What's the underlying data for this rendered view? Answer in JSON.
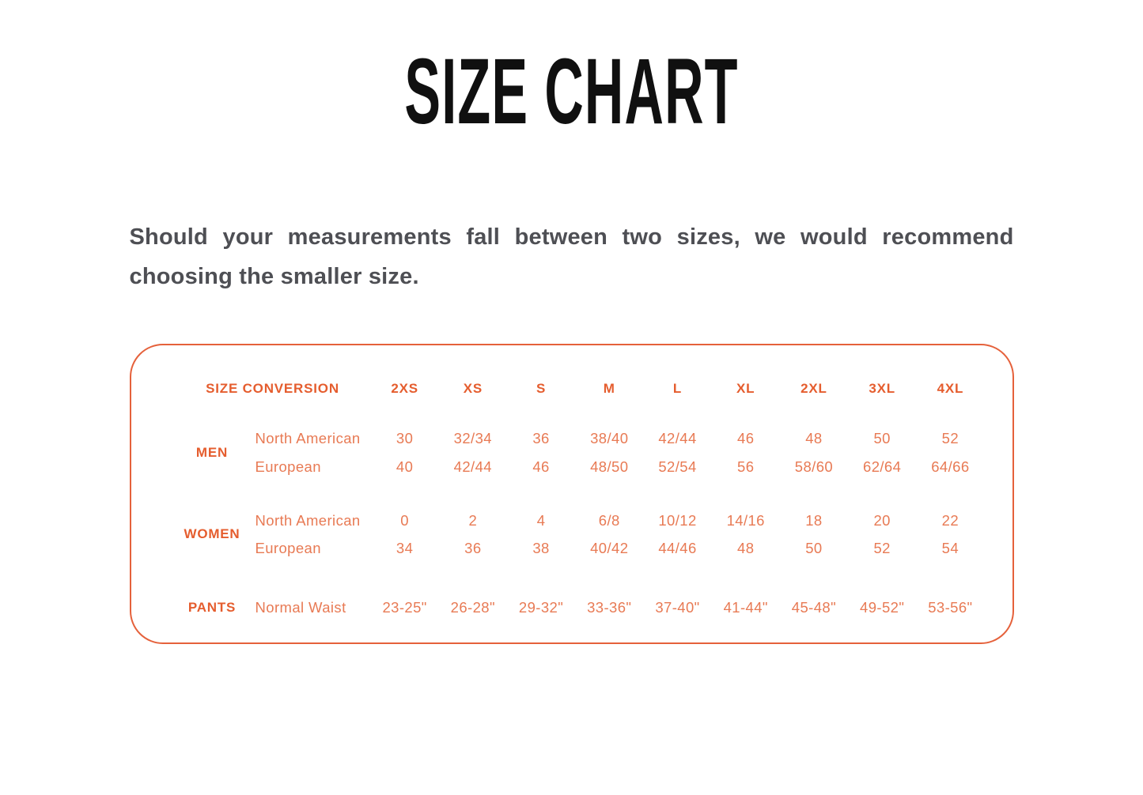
{
  "page": {
    "title": "SIZE CHART",
    "intro": "Should your measurements fall between two sizes, we would recommend choosing the smaller size."
  },
  "size_table": {
    "header": {
      "label": "SIZE CONVERSION",
      "sizes": [
        "2XS",
        "XS",
        "S",
        "M",
        "L",
        "XL",
        "2XL",
        "3XL",
        "4XL"
      ]
    },
    "groups": [
      {
        "name": "MEN",
        "rows": [
          {
            "label": "North American",
            "values": [
              "30",
              "32/34",
              "36",
              "38/40",
              "42/44",
              "46",
              "48",
              "50",
              "52"
            ]
          },
          {
            "label": "European",
            "values": [
              "40",
              "42/44",
              "46",
              "48/50",
              "52/54",
              "56",
              "58/60",
              "62/64",
              "64/66"
            ]
          }
        ]
      },
      {
        "name": "WOMEN",
        "rows": [
          {
            "label": "North American",
            "values": [
              "0",
              "2",
              "4",
              "6/8",
              "10/12",
              "14/16",
              "18",
              "20",
              "22"
            ]
          },
          {
            "label": "European",
            "values": [
              "34",
              "36",
              "38",
              "40/42",
              "44/46",
              "48",
              "50",
              "52",
              "54"
            ]
          }
        ]
      },
      {
        "name": "PANTS",
        "rows": [
          {
            "label": "Normal Waist",
            "values": [
              "23-25\"",
              "26-28\"",
              "29-32\"",
              "33-36\"",
              "37-40\"",
              "41-44\"",
              "45-48\"",
              "49-52\"",
              "53-56\""
            ]
          }
        ]
      }
    ]
  },
  "colors": {
    "accent_strong": "#e55d2e",
    "accent_light": "#e87a54",
    "panel_border": "#e5613b",
    "body_text": "#4e4f54",
    "title_text": "#101010",
    "background": "#ffffff"
  }
}
